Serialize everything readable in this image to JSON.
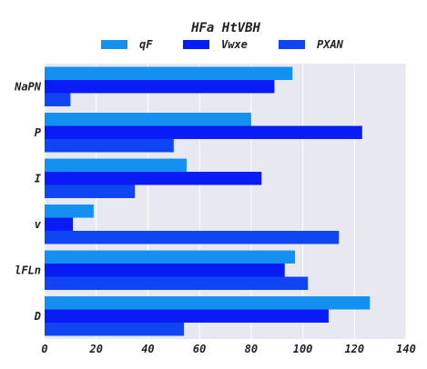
{
  "chart_data": {
    "type": "bar",
    "orientation": "horizontal",
    "title": "HFa HtVBH",
    "categories": [
      "NaPN",
      "P",
      "I",
      "v",
      "lFLn",
      "D"
    ],
    "series": [
      {
        "name": "qF",
        "color": "#1490f0",
        "values": [
          96,
          80,
          55,
          19,
          97,
          126
        ]
      },
      {
        "name": "Vwxe",
        "color": "#0a1cf5",
        "values": [
          89,
          123,
          84,
          11,
          93,
          110
        ]
      },
      {
        "name": "PXAN",
        "color": "#0f45f2",
        "values": [
          10,
          50,
          35,
          114,
          102,
          54
        ]
      }
    ],
    "xlim": [
      0,
      140
    ],
    "xticks": [
      "0",
      "20",
      "40",
      "60",
      "80",
      "100",
      "120",
      "140"
    ],
    "grid": true,
    "plot_background": "#e8e8f1",
    "legend_position": "top-center"
  }
}
